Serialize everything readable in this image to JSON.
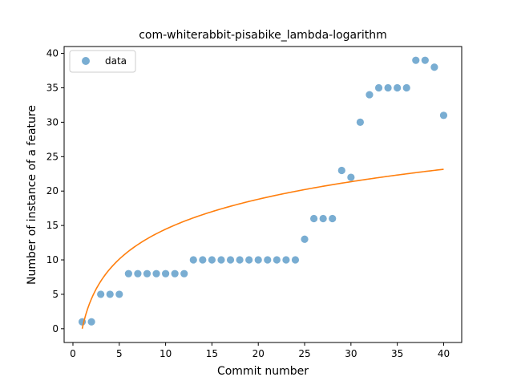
{
  "chart_data": {
    "type": "scatter",
    "title": "com-whiterabbit-pisabike_lambda-logarithm",
    "xlabel": "Commit number",
    "ylabel": "Number of instance of a feature",
    "xlim": [
      -0.95,
      41.95
    ],
    "ylim": [
      -2.0,
      41.0
    ],
    "xticks": [
      0,
      5,
      10,
      15,
      20,
      25,
      30,
      35,
      40
    ],
    "yticks": [
      0,
      5,
      10,
      15,
      20,
      25,
      30,
      35,
      40
    ],
    "grid": false,
    "legend": {
      "position": "top-left",
      "entries": [
        "data"
      ]
    },
    "series": [
      {
        "name": "data",
        "kind": "scatter",
        "color": "#1f77b4",
        "x": [
          1,
          2,
          3,
          4,
          5,
          6,
          7,
          8,
          9,
          10,
          11,
          12,
          13,
          14,
          15,
          16,
          17,
          18,
          19,
          20,
          21,
          22,
          23,
          24,
          25,
          26,
          27,
          28,
          29,
          30,
          31,
          32,
          33,
          34,
          35,
          36,
          37,
          38,
          39,
          40
        ],
        "y": [
          1,
          1,
          5,
          5,
          5,
          8,
          8,
          8,
          8,
          8,
          8,
          8,
          10,
          10,
          10,
          10,
          10,
          10,
          10,
          10,
          10,
          10,
          10,
          10,
          13,
          16,
          16,
          16,
          23,
          22,
          30,
          34,
          35,
          35,
          35,
          35,
          39,
          39,
          38,
          31
        ]
      },
      {
        "kind": "line",
        "color": "#ff7f0e",
        "model": "a*ln(x)",
        "a": 6.28,
        "x_range": [
          1,
          40
        ]
      }
    ]
  }
}
